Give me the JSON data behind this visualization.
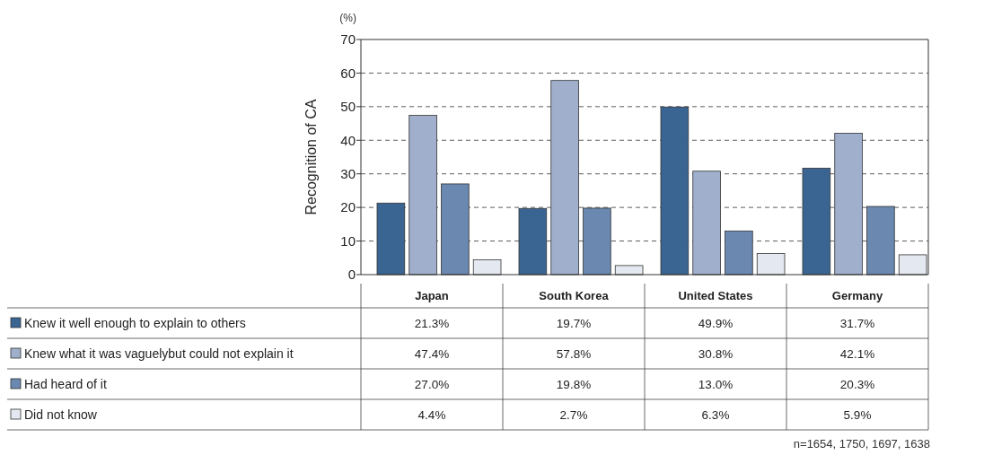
{
  "chart_data": {
    "type": "bar",
    "ylabel": "Recognition of CA",
    "categories": [
      "Japan",
      "South Korea",
      "United States",
      "Germany"
    ],
    "series": [
      {
        "name": "Knew it well enough to explain to others",
        "color": "#3a6593",
        "values": [
          21.3,
          19.7,
          49.9,
          31.7
        ],
        "value_labels": [
          "21.3%",
          "19.7%",
          "49.9%",
          "31.7%"
        ]
      },
      {
        "name": "Knew what it was vaguelybut could not explain it",
        "color": "#a0b0cc",
        "values": [
          47.4,
          57.8,
          30.8,
          42.1
        ],
        "value_labels": [
          "47.4%",
          "57.8%",
          "30.8%",
          "42.1%"
        ]
      },
      {
        "name": "Had heard of it",
        "color": "#6a88b0",
        "values": [
          27.0,
          19.8,
          13.0,
          20.3
        ],
        "value_labels": [
          "27.0%",
          "19.8%",
          "13.0%",
          "20.3%"
        ]
      },
      {
        "name": "Did not know",
        "color": "#e4e8f0",
        "values": [
          4.4,
          2.7,
          6.3,
          5.9
        ],
        "value_labels": [
          "4.4%",
          "2.7%",
          "6.3%",
          "5.9%"
        ]
      }
    ],
    "ylim": [
      0,
      70
    ],
    "yticks": [
      0,
      10,
      20,
      30,
      40,
      50,
      60,
      70
    ],
    "grid": "y",
    "legend": "bottom left",
    "annotations": [
      "(%)",
      "n=1654, 1750, 1697, 1638"
    ]
  }
}
